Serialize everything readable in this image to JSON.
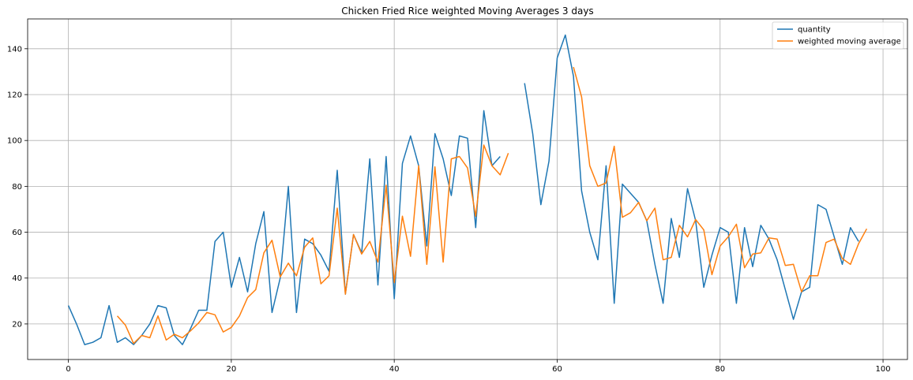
{
  "chart_data": {
    "type": "line",
    "title": "Chicken Fried Rice weighted Moving Averages 3 days",
    "xlabel": "",
    "ylabel": "",
    "xlim": [
      -5,
      103
    ],
    "ylim": [
      4.5,
      153
    ],
    "xticks": [
      0,
      20,
      40,
      60,
      80,
      100
    ],
    "yticks": [
      20,
      40,
      60,
      80,
      100,
      120,
      140
    ],
    "grid": true,
    "legend": "top-right",
    "series": [
      {
        "name": "quantity",
        "color": "#1f77b4",
        "x": [
          0,
          1,
          2,
          3,
          4,
          5,
          6,
          7,
          8,
          9,
          10,
          11,
          12,
          13,
          14,
          15,
          16,
          17,
          18,
          19,
          20,
          21,
          22,
          23,
          24,
          25,
          26,
          27,
          28,
          29,
          30,
          31,
          32,
          33,
          34,
          35,
          36,
          37,
          38,
          39,
          40,
          41,
          42,
          43,
          44,
          45,
          46,
          47,
          48,
          49,
          50,
          51,
          52,
          53,
          null,
          56,
          57,
          58,
          59,
          60,
          61,
          62,
          63,
          64,
          65,
          66,
          67,
          68,
          69,
          70,
          71,
          72,
          73,
          74,
          75,
          76,
          77,
          78,
          79,
          80,
          81,
          82,
          83,
          84,
          85,
          86,
          87,
          88,
          89,
          90,
          91,
          92,
          93,
          94,
          95,
          96,
          97
        ],
        "y": [
          28,
          20,
          11,
          12,
          14,
          28,
          12,
          14,
          11,
          15,
          20,
          28,
          27,
          15,
          11,
          18,
          26,
          26,
          56,
          60,
          36,
          49,
          34,
          55,
          69,
          25,
          40,
          80,
          25,
          57,
          55,
          50,
          43,
          87,
          33,
          59,
          51,
          92,
          37,
          93,
          31,
          90,
          102,
          89,
          54,
          103,
          92,
          76,
          102,
          101,
          62,
          113,
          89,
          93,
          null,
          125,
          103,
          72,
          91,
          136,
          146,
          128,
          78,
          60,
          48,
          89,
          29,
          81,
          77,
          73,
          65,
          46,
          29,
          66,
          49,
          79,
          65,
          36,
          50,
          62,
          60,
          29,
          62,
          45,
          63,
          57,
          48,
          35,
          22,
          34,
          36,
          72,
          70,
          58,
          46,
          62,
          56
        ]
      },
      {
        "name": "weighted moving average",
        "color": "#ff7f0e",
        "x": [
          6,
          7,
          8,
          9,
          10,
          11,
          12,
          13,
          14,
          15,
          16,
          17,
          18,
          19,
          20,
          21,
          22,
          23,
          24,
          25,
          26,
          27,
          28,
          29,
          30,
          31,
          32,
          33,
          34,
          35,
          36,
          37,
          38,
          39,
          40,
          41,
          42,
          43,
          44,
          45,
          46,
          47,
          48,
          49,
          50,
          51,
          52,
          53,
          54,
          null,
          62,
          63,
          64,
          65,
          66,
          67,
          68,
          69,
          70,
          71,
          72,
          73,
          74,
          75,
          76,
          77,
          78,
          79,
          80,
          81,
          82,
          83,
          84,
          85,
          86,
          87,
          88,
          89,
          90,
          91,
          92,
          93,
          94,
          95,
          96,
          97,
          98
        ],
        "y": [
          23.5,
          19.5,
          11.5,
          15,
          14,
          23.5,
          13,
          15.5,
          14,
          17,
          20.5,
          25,
          24,
          16.5,
          18.5,
          23.5,
          31.5,
          35,
          51,
          56.5,
          40.5,
          46.5,
          41,
          53.5,
          57.5,
          37.5,
          41,
          70.5,
          33,
          59,
          50.5,
          56,
          47,
          80.5,
          38,
          67,
          49.5,
          89,
          46,
          88.5,
          47,
          92,
          93,
          88,
          67,
          98,
          89,
          85,
          94.5,
          null,
          132,
          119,
          89,
          80,
          81.5,
          97.5,
          66.5,
          68.5,
          73,
          65,
          70.5,
          48,
          49,
          63,
          58,
          65.5,
          61,
          41.5,
          54,
          58,
          63.5,
          44.5,
          50.5,
          51,
          57.5,
          57,
          45.5,
          46,
          34,
          41,
          41,
          55.5,
          57,
          48.5,
          46,
          55,
          61.5
        ]
      }
    ]
  }
}
